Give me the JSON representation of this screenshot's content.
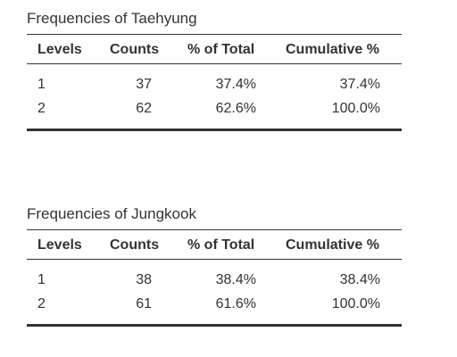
{
  "tables": [
    {
      "title": "Frequencies of Taehyung",
      "headers": {
        "levels": "Levels",
        "counts": "Counts",
        "pct_total": "% of Total",
        "cumulative": "Cumulative %"
      },
      "rows": [
        {
          "level": "1",
          "count": "37",
          "pct": "37.4%",
          "cum": "37.4%"
        },
        {
          "level": "2",
          "count": "62",
          "pct": "62.6%",
          "cum": "100.0%"
        }
      ]
    },
    {
      "title": "Frequencies of Jungkook",
      "headers": {
        "levels": "Levels",
        "counts": "Counts",
        "pct_total": "% of Total",
        "cumulative": "Cumulative %"
      },
      "rows": [
        {
          "level": "1",
          "count": "38",
          "pct": "38.4%",
          "cum": "38.4%"
        },
        {
          "level": "2",
          "count": "61",
          "pct": "61.6%",
          "cum": "100.0%"
        }
      ]
    }
  ]
}
